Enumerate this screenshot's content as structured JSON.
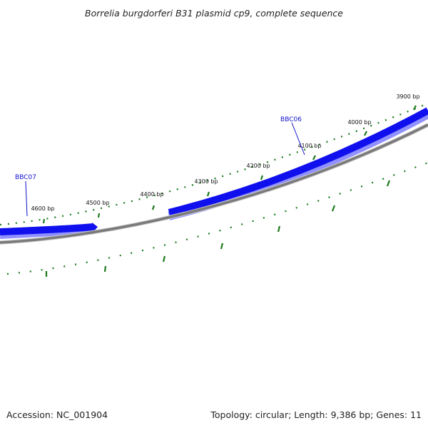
{
  "title": "Borrelia burgdorferi B31 plasmid cp9, complete sequence",
  "accession": "Accession: NC_001904",
  "summary": "Topology: circular; Length: 9,386 bp; Genes: 11",
  "tick_labels": [
    "3900 bp",
    "4000 bp",
    "4100 bp",
    "4200 bp",
    "4300 bp",
    "4400 bp",
    "4500 bp",
    "4600 bp"
  ],
  "genes": [
    {
      "name": "BBC06",
      "strand": "forward"
    },
    {
      "name": "BBC07",
      "strand": "reverse"
    }
  ],
  "colors": {
    "gene_fill": "#1010ee",
    "gene_shadow": "#9090ff",
    "label_blue": "#1010cc",
    "backbone": "#7a7a7a",
    "backbone_light": "#c8c8c8",
    "tick_green": "#1a7a1a"
  }
}
